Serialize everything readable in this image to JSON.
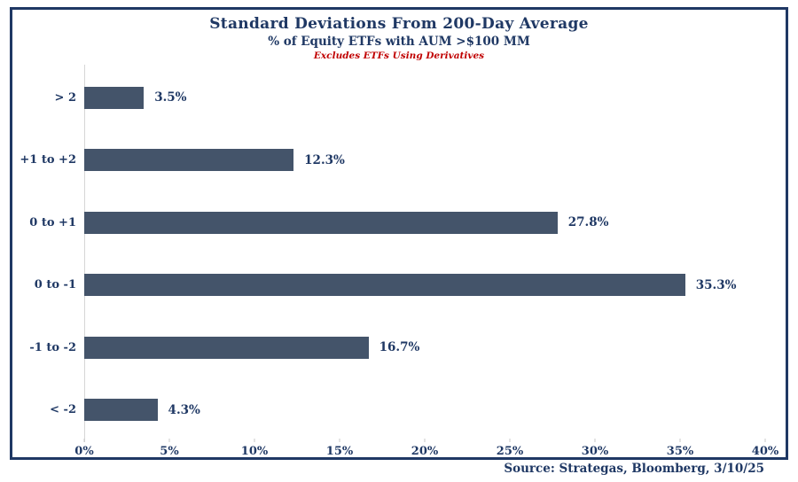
{
  "chart_data": {
    "type": "bar",
    "orientation": "horizontal",
    "title": "Standard Deviations From 200-Day Average",
    "subtitle": "% of Equity ETFs with AUM >$100 MM",
    "note": "Excludes ETFs Using Derivatives",
    "categories": [
      "> 2",
      "+1 to +2",
      "0 to +1",
      "0 to -1",
      "-1 to -2",
      "< -2"
    ],
    "values": [
      3.5,
      12.3,
      27.8,
      35.3,
      16.7,
      4.3
    ],
    "value_labels": [
      "3.5%",
      "12.3%",
      "27.8%",
      "35.3%",
      "16.7%",
      "4.3%"
    ],
    "xlabel": "",
    "ylabel": "",
    "xlim": [
      0,
      40
    ],
    "x_tick_values": [
      0,
      5,
      10,
      15,
      20,
      25,
      30,
      35,
      40
    ],
    "x_tick_labels": [
      "0%",
      "5%",
      "10%",
      "15%",
      "20%",
      "25%",
      "30%",
      "35%",
      "40%"
    ],
    "grid": false,
    "legend": false,
    "source": "Source: Strategas, Bloomberg, 3/10/25",
    "colors": {
      "bar": "#44546a",
      "text": "#1f3864",
      "note": "#c00000",
      "frame_border": "#1f3864",
      "axis_line": "#d6d6d6"
    }
  }
}
